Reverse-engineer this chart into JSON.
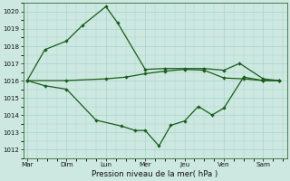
{
  "background_color": "#cce8e0",
  "grid_color": "#a8d4cc",
  "line_color": "#1a5c1a",
  "xlabel": "Pression niveau de la mer( hPa )",
  "x_labels": [
    "Mar",
    "Dim",
    "Lun",
    "Mer",
    "Jeu",
    "Ven",
    "Sam"
  ],
  "ylim": [
    1011.5,
    1020.5
  ],
  "yticks": [
    1012,
    1013,
    1014,
    1015,
    1016,
    1017,
    1018,
    1019,
    1020
  ],
  "upper_x": [
    0,
    0.45,
    1.0,
    1.4,
    2.0,
    2.3,
    3.0,
    3.5,
    4.0,
    4.5,
    5.0,
    5.4,
    6.0,
    6.4
  ],
  "upper_y": [
    1016.0,
    1017.8,
    1018.3,
    1019.2,
    1020.3,
    1019.35,
    1016.65,
    1016.7,
    1016.7,
    1016.7,
    1016.6,
    1017.0,
    1016.1,
    1016.0
  ],
  "mid_x": [
    0,
    1.0,
    2.0,
    2.5,
    3.0,
    3.5,
    4.0,
    4.5,
    5.0,
    5.5,
    6.0,
    6.4
  ],
  "mid_y": [
    1016.0,
    1016.0,
    1016.1,
    1016.2,
    1016.4,
    1016.55,
    1016.65,
    1016.6,
    1016.15,
    1016.1,
    1016.0,
    1016.0
  ],
  "lower_x": [
    0,
    0.45,
    1.0,
    1.75,
    2.4,
    2.75,
    3.0,
    3.35,
    3.65,
    4.0,
    4.35,
    4.7,
    5.0,
    5.5,
    6.0,
    6.4
  ],
  "lower_y": [
    1016.0,
    1015.7,
    1015.5,
    1013.7,
    1013.35,
    1013.1,
    1013.1,
    1012.2,
    1013.4,
    1013.65,
    1014.5,
    1014.0,
    1014.4,
    1016.2,
    1016.0,
    1016.0
  ],
  "xlim": [
    -0.1,
    6.6
  ],
  "figsize": [
    3.2,
    2.0
  ],
  "dpi": 100
}
